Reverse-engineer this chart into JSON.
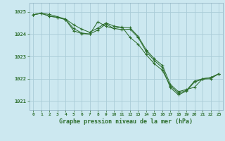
{
  "title": "Graphe pression niveau de la mer (hPa)",
  "xlim": [
    -0.5,
    23.5
  ],
  "ylim": [
    1020.6,
    1025.4
  ],
  "yticks": [
    1021,
    1022,
    1023,
    1024,
    1025
  ],
  "xticks": [
    0,
    1,
    2,
    3,
    4,
    5,
    6,
    7,
    8,
    9,
    10,
    11,
    12,
    13,
    14,
    15,
    16,
    17,
    18,
    19,
    20,
    21,
    22,
    23
  ],
  "background_color": "#cce8f0",
  "grid_color": "#aaccd8",
  "line_color": "#2d6e2d",
  "series1": [
    [
      0,
      1024.87
    ],
    [
      1,
      1024.93
    ],
    [
      2,
      1024.88
    ],
    [
      3,
      1024.78
    ],
    [
      4,
      1024.67
    ],
    [
      5,
      1024.42
    ],
    [
      6,
      1024.22
    ],
    [
      7,
      1024.08
    ],
    [
      8,
      1024.27
    ],
    [
      9,
      1024.5
    ],
    [
      10,
      1024.36
    ],
    [
      11,
      1024.3
    ],
    [
      12,
      1024.28
    ],
    [
      13,
      1023.9
    ],
    [
      14,
      1023.3
    ],
    [
      15,
      1022.9
    ],
    [
      16,
      1022.6
    ],
    [
      17,
      1021.75
    ],
    [
      18,
      1021.42
    ],
    [
      19,
      1021.52
    ],
    [
      20,
      1021.62
    ],
    [
      21,
      1022.0
    ],
    [
      22,
      1022.05
    ],
    [
      23,
      1022.22
    ]
  ],
  "series2": [
    [
      0,
      1024.87
    ],
    [
      1,
      1024.93
    ],
    [
      2,
      1024.8
    ],
    [
      3,
      1024.75
    ],
    [
      4,
      1024.65
    ],
    [
      5,
      1024.25
    ],
    [
      6,
      1024.05
    ],
    [
      7,
      1024.0
    ],
    [
      8,
      1024.18
    ],
    [
      9,
      1024.45
    ],
    [
      10,
      1024.25
    ],
    [
      11,
      1024.2
    ],
    [
      12,
      1024.22
    ],
    [
      13,
      1023.85
    ],
    [
      14,
      1023.22
    ],
    [
      15,
      1022.82
    ],
    [
      16,
      1022.5
    ],
    [
      17,
      1021.6
    ],
    [
      18,
      1021.28
    ],
    [
      19,
      1021.45
    ],
    [
      20,
      1021.85
    ],
    [
      21,
      1021.98
    ],
    [
      22,
      1022.0
    ],
    [
      23,
      1022.22
    ]
  ],
  "series3": [
    [
      0,
      1024.87
    ],
    [
      1,
      1024.93
    ],
    [
      2,
      1024.8
    ],
    [
      3,
      1024.75
    ],
    [
      4,
      1024.65
    ],
    [
      5,
      1024.15
    ],
    [
      6,
      1024.02
    ],
    [
      7,
      1024.0
    ],
    [
      8,
      1024.55
    ],
    [
      9,
      1024.35
    ],
    [
      10,
      1024.25
    ],
    [
      11,
      1024.32
    ],
    [
      12,
      1023.85
    ],
    [
      13,
      1023.55
    ],
    [
      14,
      1023.08
    ],
    [
      15,
      1022.68
    ],
    [
      16,
      1022.38
    ],
    [
      17,
      1021.68
    ],
    [
      18,
      1021.35
    ],
    [
      19,
      1021.48
    ],
    [
      20,
      1021.9
    ],
    [
      21,
      1022.0
    ],
    [
      22,
      1022.05
    ],
    [
      23,
      1022.22
    ]
  ]
}
